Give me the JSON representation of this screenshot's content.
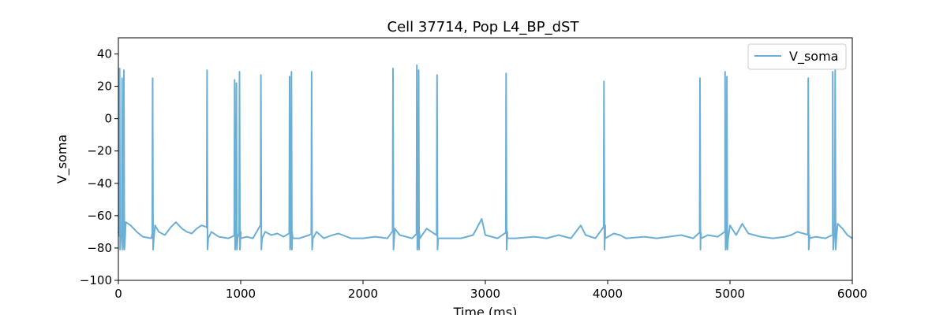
{
  "chart_data": {
    "type": "line",
    "title": "Cell 37714, Pop L4_BP_dST",
    "xlabel": "Time (ms)",
    "ylabel": "V_soma",
    "xlim": [
      0,
      6000
    ],
    "ylim": [
      -100,
      50
    ],
    "xticks": [
      0,
      1000,
      2000,
      3000,
      4000,
      5000,
      6000
    ],
    "yticks": [
      -100,
      -80,
      -60,
      -40,
      -20,
      0,
      20,
      40
    ],
    "grid": false,
    "legend": {
      "position": "top-right",
      "entries": [
        "V_soma"
      ]
    },
    "baseline": [
      [
        0,
        -70
      ],
      [
        20,
        -75
      ],
      [
        60,
        -64
      ],
      [
        100,
        -66
      ],
      [
        150,
        -70
      ],
      [
        200,
        -73
      ],
      [
        270,
        -74
      ],
      [
        300,
        -66
      ],
      [
        330,
        -70
      ],
      [
        380,
        -72
      ],
      [
        430,
        -67
      ],
      [
        470,
        -64
      ],
      [
        520,
        -68
      ],
      [
        560,
        -70
      ],
      [
        600,
        -71
      ],
      [
        640,
        -68
      ],
      [
        680,
        -66
      ],
      [
        720,
        -67
      ],
      [
        760,
        -70
      ],
      [
        820,
        -73
      ],
      [
        900,
        -74
      ],
      [
        960,
        -72
      ],
      [
        1000,
        -70
      ],
      [
        1050,
        -73
      ],
      [
        1100,
        -74
      ],
      [
        1160,
        -66
      ],
      [
        1200,
        -70
      ],
      [
        1250,
        -72
      ],
      [
        1300,
        -71
      ],
      [
        1350,
        -73
      ],
      [
        1420,
        -70
      ],
      [
        1480,
        -74
      ],
      [
        1560,
        -72
      ],
      [
        1620,
        -70
      ],
      [
        1680,
        -74
      ],
      [
        1750,
        -72
      ],
      [
        1800,
        -71
      ],
      [
        1900,
        -74
      ],
      [
        2000,
        -74
      ],
      [
        2100,
        -73
      ],
      [
        2200,
        -74
      ],
      [
        2260,
        -68
      ],
      [
        2300,
        -72
      ],
      [
        2400,
        -74
      ],
      [
        2460,
        -70
      ],
      [
        2520,
        -68
      ],
      [
        2600,
        -72
      ],
      [
        2700,
        -74
      ],
      [
        2800,
        -74
      ],
      [
        2900,
        -72
      ],
      [
        2970,
        -62
      ],
      [
        3000,
        -72
      ],
      [
        3100,
        -74
      ],
      [
        3180,
        -70
      ],
      [
        3250,
        -74
      ],
      [
        3400,
        -73
      ],
      [
        3500,
        -74
      ],
      [
        3600,
        -72
      ],
      [
        3650,
        -73
      ],
      [
        3700,
        -74
      ],
      [
        3780,
        -66
      ],
      [
        3820,
        -72
      ],
      [
        3900,
        -74
      ],
      [
        3980,
        -66
      ],
      [
        4050,
        -71
      ],
      [
        4100,
        -72
      ],
      [
        4150,
        -74
      ],
      [
        4300,
        -73
      ],
      [
        4400,
        -74
      ],
      [
        4500,
        -73
      ],
      [
        4600,
        -72
      ],
      [
        4700,
        -74
      ],
      [
        4760,
        -70
      ],
      [
        4820,
        -72
      ],
      [
        4900,
        -73
      ],
      [
        4960,
        -70
      ],
      [
        5000,
        -66
      ],
      [
        5050,
        -72
      ],
      [
        5100,
        -65
      ],
      [
        5150,
        -71
      ],
      [
        5250,
        -73
      ],
      [
        5350,
        -74
      ],
      [
        5450,
        -73
      ],
      [
        5500,
        -72
      ],
      [
        5550,
        -70
      ],
      [
        5650,
        -72
      ],
      [
        5700,
        -73
      ],
      [
        5780,
        -74
      ],
      [
        5840,
        -72
      ],
      [
        5880,
        -65
      ],
      [
        5920,
        -68
      ],
      [
        5960,
        -72
      ],
      [
        6000,
        -74
      ]
    ],
    "spikes": [
      {
        "t": 10,
        "peak": 31
      },
      {
        "t": 30,
        "peak": 25
      },
      {
        "t": 45,
        "peak": 30
      },
      {
        "t": 280,
        "peak": 25
      },
      {
        "t": 725,
        "peak": 30
      },
      {
        "t": 950,
        "peak": 24
      },
      {
        "t": 965,
        "peak": 22
      },
      {
        "t": 990,
        "peak": 29
      },
      {
        "t": 1165,
        "peak": 27
      },
      {
        "t": 1400,
        "peak": 26
      },
      {
        "t": 1415,
        "peak": 29
      },
      {
        "t": 1580,
        "peak": 29
      },
      {
        "t": 2245,
        "peak": 31
      },
      {
        "t": 2440,
        "peak": 33
      },
      {
        "t": 2455,
        "peak": 30
      },
      {
        "t": 2605,
        "peak": 27
      },
      {
        "t": 3170,
        "peak": 28
      },
      {
        "t": 3970,
        "peak": 23
      },
      {
        "t": 4755,
        "peak": 25
      },
      {
        "t": 4960,
        "peak": 29
      },
      {
        "t": 4975,
        "peak": 26
      },
      {
        "t": 5640,
        "peak": 25
      },
      {
        "t": 5840,
        "peak": 29
      },
      {
        "t": 5860,
        "peak": 30
      }
    ],
    "series": [
      {
        "name": "V_soma",
        "color": "#6baed6"
      }
    ]
  }
}
